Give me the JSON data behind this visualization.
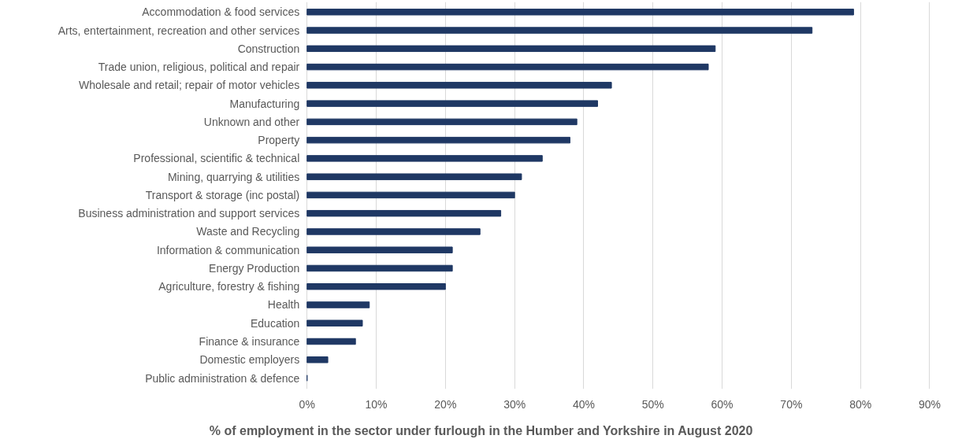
{
  "chart_data": {
    "type": "bar",
    "orientation": "horizontal",
    "xlabel": "% of employment in the sector under furlough in the Humber and Yorkshire in August 2020",
    "categories": [
      "Accommodation & food services",
      "Arts, entertainment, recreation and other services",
      "Construction",
      "Trade union, religious, political and repair",
      "Wholesale and retail; repair of motor vehicles",
      "Manufacturing",
      "Unknown and other",
      "Property",
      "Professional, scientific & technical",
      "Mining, quarrying & utilities",
      "Transport & storage (inc postal)",
      "Business administration and support services",
      "Waste and Recycling",
      "Information & communication",
      "Energy Production",
      "Agriculture, forestry & fishing",
      "Health",
      "Education",
      "Finance & insurance",
      "Domestic employers",
      "Public administration & defence"
    ],
    "values": [
      79,
      73,
      59,
      58,
      44,
      42,
      39,
      38,
      34,
      31,
      30,
      28,
      25,
      21,
      21,
      20,
      9,
      8,
      7,
      3,
      0
    ],
    "color": "#1f3864",
    "xlim": [
      0,
      90
    ],
    "xticks": [
      {
        "value": 0,
        "label": "0%"
      },
      {
        "value": 10,
        "label": "10%"
      },
      {
        "value": 20,
        "label": "20%"
      },
      {
        "value": 30,
        "label": "30%"
      },
      {
        "value": 40,
        "label": "40%"
      },
      {
        "value": 50,
        "label": "50%"
      },
      {
        "value": 60,
        "label": "60%"
      },
      {
        "value": 70,
        "label": "70%"
      },
      {
        "value": 80,
        "label": "80%"
      },
      {
        "value": 90,
        "label": "90%"
      }
    ],
    "grid": "x"
  }
}
